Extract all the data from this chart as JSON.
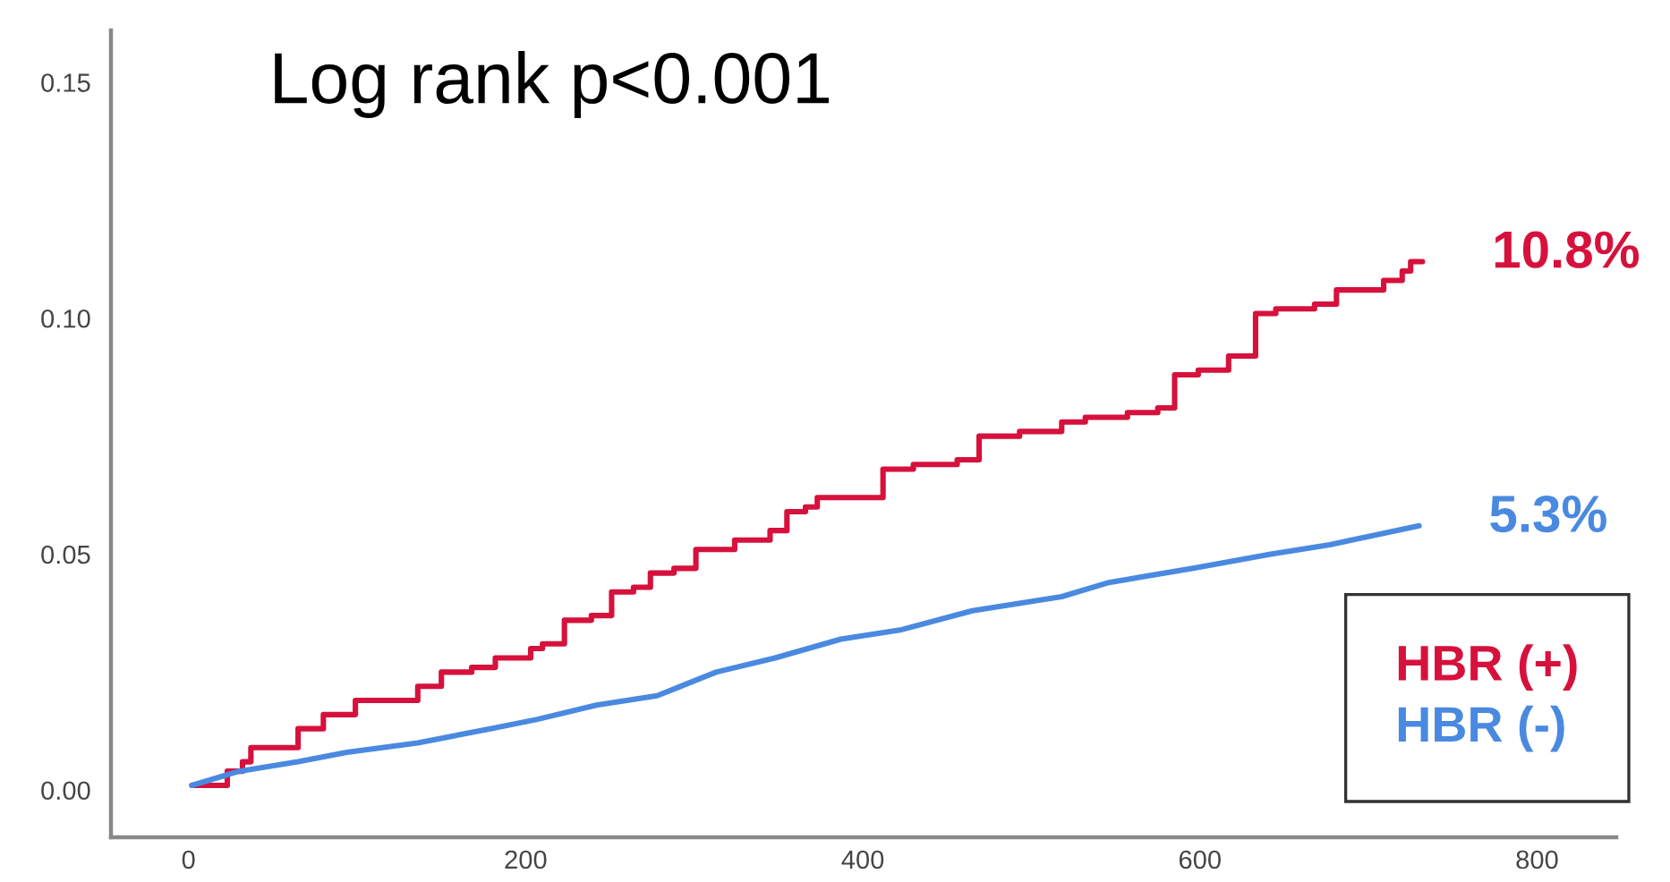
{
  "chart_data": {
    "type": "step",
    "title": "Log rank p<0.001",
    "series": [
      {
        "name": "HBR (+)",
        "color": "#d6113c",
        "x": [
          2,
          14,
          23,
          32,
          37,
          58,
          65,
          80,
          99,
          129,
          136,
          150,
          168,
          182,
          203,
          210,
          223,
          239,
          251,
          264,
          274,
          288,
          301,
          313,
          324,
          345,
          355,
          366,
          373,
          400,
          412,
          430,
          456,
          469,
          493,
          518,
          532,
          557,
          575,
          585,
          599,
          617,
          633,
          645,
          668,
          681,
          709,
          720,
          725,
          732
        ],
        "values": [
          0.001,
          0.001,
          0.004,
          0.006,
          0.009,
          0.009,
          0.013,
          0.016,
          0.019,
          0.019,
          0.022,
          0.025,
          0.026,
          0.028,
          0.03,
          0.031,
          0.036,
          0.037,
          0.042,
          0.043,
          0.046,
          0.047,
          0.051,
          0.051,
          0.053,
          0.055,
          0.059,
          0.06,
          0.062,
          0.062,
          0.068,
          0.069,
          0.07,
          0.075,
          0.076,
          0.078,
          0.079,
          0.08,
          0.081,
          0.088,
          0.089,
          0.092,
          0.101,
          0.102,
          0.103,
          0.106,
          0.108,
          0.11,
          0.112,
          0.112
        ]
      },
      {
        "name": "HBR (-)",
        "color": "#4a89e0",
        "type": "line",
        "x": [
          2,
          30,
          65,
          94,
          136,
          179,
          207,
          242,
          278,
          313,
          348,
          387,
          423,
          465,
          518,
          546,
          596,
          642,
          677,
          730
        ],
        "values": [
          0.001,
          0.004,
          0.006,
          0.008,
          0.01,
          0.013,
          0.015,
          0.018,
          0.02,
          0.025,
          0.028,
          0.032,
          0.034,
          0.038,
          0.041,
          0.044,
          0.047,
          0.05,
          0.052,
          0.056
        ]
      }
    ],
    "annotations": [
      {
        "text": "10.8%",
        "x": 732,
        "y": 0.112
      },
      {
        "text": "5.3%",
        "x": 730,
        "y": 0.056
      }
    ],
    "xlim": [
      -46,
      847
    ],
    "xticks": [
      0,
      200,
      400,
      600,
      800
    ],
    "ylim": [
      -0.01,
      0.161
    ],
    "yticks": [
      {
        "value": 0,
        "label": "0.00"
      },
      {
        "value": 0.05,
        "label": "0.05"
      },
      {
        "value": 0.1,
        "label": "0.10"
      },
      {
        "value": 0.15,
        "label": "0.15"
      }
    ],
    "legend": "bottom right",
    "grid": false,
    "line_style": "solid"
  }
}
